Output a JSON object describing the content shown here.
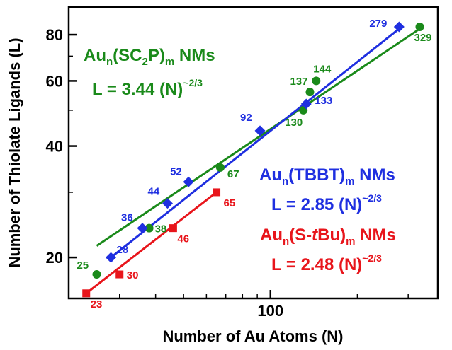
{
  "chart_data": {
    "type": "scatter",
    "xlabel": "Number of Au Atoms (N)",
    "ylabel": "Number of Thiolate Ligands (L)",
    "x_scale": "log",
    "y_scale": "log",
    "xlim": [
      20,
      380
    ],
    "ylim": [
      15.5,
      95
    ],
    "x_ticks": [
      100
    ],
    "y_ticks": [
      20,
      40,
      60,
      80
    ],
    "grid": false,
    "series": [
      {
        "color": "#1a8a1a",
        "marker": "circle",
        "points": [
          {
            "x": 25,
            "y": 18,
            "label": "25"
          },
          {
            "x": 38,
            "y": 24,
            "label": "38"
          },
          {
            "x": 67,
            "y": 35,
            "label": "67"
          },
          {
            "x": 130,
            "y": 50,
            "label": "130"
          },
          {
            "x": 137,
            "y": 56,
            "label": "137"
          },
          {
            "x": 144,
            "y": 60,
            "label": "144"
          },
          {
            "x": 329,
            "y": 84,
            "label": "329"
          }
        ],
        "fit": {
          "x": [
            25,
            329
          ],
          "y": [
            21.5,
            83
          ]
        }
      },
      {
        "color": "#1f2fe0",
        "marker": "diamond",
        "points": [
          {
            "x": 28,
            "y": 20,
            "label": "28"
          },
          {
            "x": 36,
            "y": 24,
            "label": "36"
          },
          {
            "x": 44,
            "y": 28,
            "label": "44"
          },
          {
            "x": 52,
            "y": 32,
            "label": "52"
          },
          {
            "x": 92,
            "y": 44,
            "label": "92"
          },
          {
            "x": 133,
            "y": 52,
            "label": "133"
          },
          {
            "x": 279,
            "y": 84,
            "label": "279"
          }
        ],
        "fit": {
          "x": [
            28,
            279
          ],
          "y": [
            20,
            83
          ]
        }
      },
      {
        "color": "#e8151b",
        "marker": "square",
        "points": [
          {
            "x": 23,
            "y": 16,
            "label": "23"
          },
          {
            "x": 30,
            "y": 18,
            "label": "30"
          },
          {
            "x": 46,
            "y": 24,
            "label": "46"
          },
          {
            "x": 65,
            "y": 30,
            "label": "65"
          }
        ],
        "fit": {
          "x": [
            23,
            65
          ],
          "y": [
            16,
            30
          ]
        }
      }
    ],
    "annotations": [
      {
        "color": "#1a8a1a",
        "line1": {
          "base": "Au",
          "s1": "n",
          "mid": "(SC",
          "s2": "2",
          "rest": "P)",
          "s3": "m",
          "end": " NMs"
        },
        "line2": {
          "text": "L = 3.44 (N)",
          "exp": "~2/3"
        }
      },
      {
        "color": "#1f2fe0",
        "line1": {
          "base": "Au",
          "s1": "n",
          "mid": "(TBBT)",
          "s3": "m",
          "end": " NMs"
        },
        "line2": {
          "text": "L = 2.85 (N)",
          "exp": "~2/3"
        }
      },
      {
        "color": "#e8151b",
        "line1": {
          "base": "Au",
          "s1": "n",
          "mid": "(S-",
          "italic": "t",
          "after": "Bu)",
          "s3": "m",
          "end": " NMs"
        },
        "line2": {
          "text": "L = 2.48 (N)",
          "exp": "~2/3"
        }
      }
    ]
  }
}
